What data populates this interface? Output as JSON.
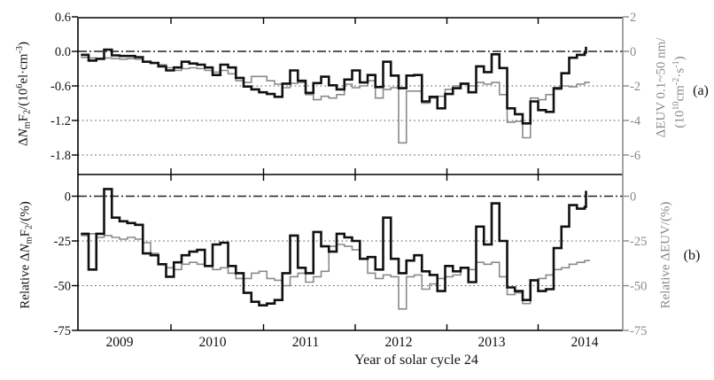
{
  "labels": {
    "xlabel": "Year of solar cycle 24",
    "panel_a": "(a)",
    "panel_b": "(b)",
    "top_left_parts": [
      {
        "t": "Δ"
      },
      {
        "t": "N",
        "style": "italic"
      },
      {
        "t": "m",
        "style": "sub"
      },
      {
        "t": "F"
      },
      {
        "t": "2",
        "style": "sub"
      },
      {
        "t": "/(10"
      },
      {
        "t": "6",
        "style": "sup"
      },
      {
        "t": "el·cm"
      },
      {
        "t": "-3",
        "style": "sup"
      },
      {
        "t": ")"
      }
    ],
    "top_right_line1_parts": [
      {
        "t": "ΔEUV 0.1~50 nm/"
      }
    ],
    "top_right_line2_parts": [
      {
        "t": "(10"
      },
      {
        "t": "10",
        "style": "sup"
      },
      {
        "t": "cm"
      },
      {
        "t": "-2",
        "style": "sup"
      },
      {
        "t": "·s"
      },
      {
        "t": "-1",
        "style": "sup"
      },
      {
        "t": ")"
      }
    ],
    "bottom_left_parts": [
      {
        "t": "Relative Δ"
      },
      {
        "t": "N",
        "style": "italic"
      },
      {
        "t": "m",
        "style": "sub"
      },
      {
        "t": "F"
      },
      {
        "t": "2",
        "style": "sub"
      },
      {
        "t": "/(%)"
      }
    ],
    "bottom_right_parts": [
      {
        "t": "Relative ΔEUV/(%)"
      }
    ]
  },
  "colors": {
    "nmf2_line": "#111111",
    "euv_line": "#8a8a8a",
    "axis": "#000000",
    "right_axis": "#8a8a8a",
    "grid_zero": "#222222",
    "grid_dotted": "#555555",
    "right_text": "#8a8a8a",
    "left_text": "#111111"
  },
  "x_axis": {
    "year_labels": [
      "2009",
      "2010",
      "2011",
      "2012",
      "2013",
      "2014"
    ],
    "title": "Year of solar cycle 24"
  },
  "chart_data": [
    {
      "panel": "a",
      "type": "line",
      "line_style": "step",
      "x_start": "2008-08",
      "x_end": "2014-01",
      "x_unit": "month",
      "left_axis": {
        "label": "ΔNmF2/(10^6 el·cm^-3)",
        "ticks": [
          0.6,
          0.0,
          -0.6,
          -1.2,
          -1.8
        ],
        "tick_labels": [
          "0.6",
          "0.0",
          "-0.6",
          "-1.2",
          "-1.8"
        ],
        "range": [
          -2.14,
          0.6
        ]
      },
      "right_axis": {
        "label": "ΔEUV 0.1~50 nm/(10^10 cm^-2·s^-1)",
        "ticks": [
          2,
          0,
          -2,
          -4,
          -6
        ],
        "tick_labels": [
          "2",
          "0",
          "-2",
          "-4",
          "-6"
        ],
        "range": [
          -6.9,
          2
        ]
      },
      "series": [
        {
          "name": "ΔNmF2",
          "axis": "left",
          "style": "thick-black",
          "end_tick": 0.08,
          "values": [
            -0.06,
            -0.16,
            -0.13,
            0.03,
            -0.07,
            -0.08,
            -0.08,
            -0.1,
            -0.18,
            -0.2,
            -0.26,
            -0.33,
            -0.28,
            -0.18,
            -0.21,
            -0.23,
            -0.28,
            -0.41,
            -0.23,
            -0.28,
            -0.46,
            -0.61,
            -0.66,
            -0.71,
            -0.74,
            -0.79,
            -0.56,
            -0.33,
            -0.51,
            -0.72,
            -0.55,
            -0.44,
            -0.59,
            -0.66,
            -0.49,
            -0.33,
            -0.54,
            -0.41,
            -0.62,
            -0.18,
            -0.42,
            -0.64,
            -0.42,
            -0.41,
            -0.87,
            -0.79,
            -0.99,
            -0.74,
            -0.64,
            -0.56,
            -0.71,
            -0.26,
            -0.36,
            -0.05,
            -0.29,
            -0.99,
            -1.09,
            -1.25,
            -0.87,
            -1.02,
            -1.05,
            -0.64,
            -0.38,
            -0.11,
            -0.06,
            -0.02
          ]
        },
        {
          "name": "ΔEUV",
          "axis": "right",
          "style": "thin-gray",
          "values": [
            -0.35,
            -0.38,
            -0.4,
            -0.38,
            -0.42,
            -0.45,
            -0.42,
            -0.45,
            -0.6,
            -0.7,
            -0.77,
            -0.95,
            -1.1,
            -1.0,
            -0.95,
            -1.0,
            -1.1,
            -1.2,
            -1.1,
            -1.3,
            -1.7,
            -1.8,
            -1.45,
            -1.45,
            -1.7,
            -1.9,
            -2.1,
            -1.85,
            -1.8,
            -2.5,
            -2.8,
            -2.6,
            -2.7,
            -2.5,
            -1.9,
            -2.1,
            -2.0,
            -1.7,
            -2.7,
            -2.2,
            -2.1,
            -5.3,
            -2.3,
            -2.3,
            -3.0,
            -2.7,
            -2.6,
            -2.2,
            -2.0,
            -1.9,
            -2.0,
            -1.8,
            -1.9,
            -1.8,
            -2.5,
            -4.1,
            -4.05,
            -5.0,
            -2.7,
            -2.8,
            -2.5,
            -2.2,
            -2.0,
            -2.05,
            -1.9,
            -1.8
          ]
        }
      ]
    },
    {
      "panel": "b",
      "type": "line",
      "line_style": "step",
      "x_start": "2008-08",
      "x_end": "2014-01",
      "x_unit": "month",
      "left_axis": {
        "label": "Relative ΔNmF2/(%)",
        "ticks": [
          0,
          -25,
          -50,
          -75
        ],
        "tick_labels": [
          "0",
          "-25",
          "-50",
          "-75"
        ],
        "range": [
          -75,
          12
        ]
      },
      "right_axis": {
        "label": "Relative ΔEUV/(%)",
        "ticks": [
          0,
          -25,
          -50,
          -75
        ],
        "tick_labels": [
          "0",
          "-25",
          "-50",
          "-75"
        ],
        "range": [
          -75,
          12
        ]
      },
      "series": [
        {
          "name": "Relative ΔNmF2",
          "axis": "left",
          "style": "thick-black",
          "end_tick": 3,
          "values": [
            -21,
            -41,
            -21,
            4,
            -12,
            -14,
            -15,
            -16,
            -32,
            -33,
            -38,
            -45,
            -37,
            -33,
            -31,
            -30,
            -39,
            -27,
            -26,
            -39,
            -43,
            -54,
            -59,
            -61,
            -60,
            -58,
            -43,
            -22,
            -40,
            -43,
            -20,
            -28,
            -31,
            -21,
            -23,
            -25,
            -35,
            -34,
            -41,
            -12,
            -35,
            -43,
            -36,
            -33,
            -42,
            -44,
            -53,
            -39,
            -42,
            -40,
            -48,
            -17,
            -27,
            -4,
            -25,
            -51,
            -53,
            -58,
            -47,
            -53,
            -52,
            -29,
            -17,
            -5,
            -7,
            -6
          ]
        },
        {
          "name": "Relative ΔEUV",
          "axis": "right",
          "style": "thin-gray",
          "values": [
            -22,
            -21,
            -23,
            -22,
            -23,
            -24,
            -23,
            -24,
            -26,
            -32,
            -38,
            -40,
            -41,
            -38,
            -37,
            -38,
            -39,
            -41,
            -40,
            -43,
            -46,
            -46,
            -43,
            -42,
            -46,
            -47,
            -50,
            -45,
            -43,
            -48,
            -45,
            -42,
            -28,
            -27,
            -28,
            -30,
            -35,
            -43,
            -46,
            -44,
            -45,
            -63,
            -45,
            -44,
            -52,
            -49,
            -46,
            -45,
            -44,
            -40,
            -41,
            -37,
            -38,
            -37,
            -45,
            -55,
            -54,
            -60,
            -47,
            -46,
            -44,
            -41,
            -40,
            -38,
            -37,
            -36
          ]
        }
      ]
    }
  ]
}
